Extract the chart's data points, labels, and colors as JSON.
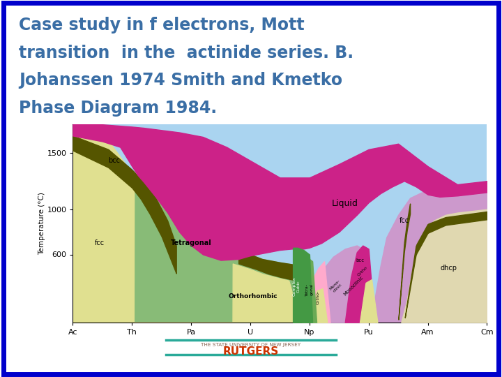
{
  "title_lines": [
    "Case study in f electrons, Mott",
    "transition  in the  actinide series. B.",
    "Johanssen 1974 Smith and Kmetko",
    "Phase Diagram 1984."
  ],
  "title_color": "#3a6ea5",
  "title_fontsize": 17,
  "background_color": "#ffffff",
  "border_color": "#0000cc",
  "rutgers_text": "THE STATE UNIVERSITY OF NEW JERSEY",
  "rutgers_name": "RUTGERS",
  "rutgers_color": "#cc3300",
  "rutgers_line_color": "#2aaa99",
  "ylabel": "Temperature (°C)",
  "xlabel_elements": [
    "Ac",
    "Th",
    "Pa",
    "U",
    "Np",
    "Pu",
    "Am",
    "Cm"
  ],
  "yticks": [
    600,
    1000,
    1500
  ],
  "colors": {
    "liquid": "#aad4f0",
    "bcc": "#cc2288",
    "fcc": "#e0e090",
    "tetragonal": "#88bb77",
    "orthorhombic": "#e0e090",
    "complex_cubic": "#449944",
    "monoclinic": "#cc99cc",
    "fcc_right": "#cc99cc",
    "dhcp": "#e0d8b0",
    "border_dark": "#555500",
    "bcc_small": "#cc2288",
    "pink_small": "#ffaacc"
  }
}
